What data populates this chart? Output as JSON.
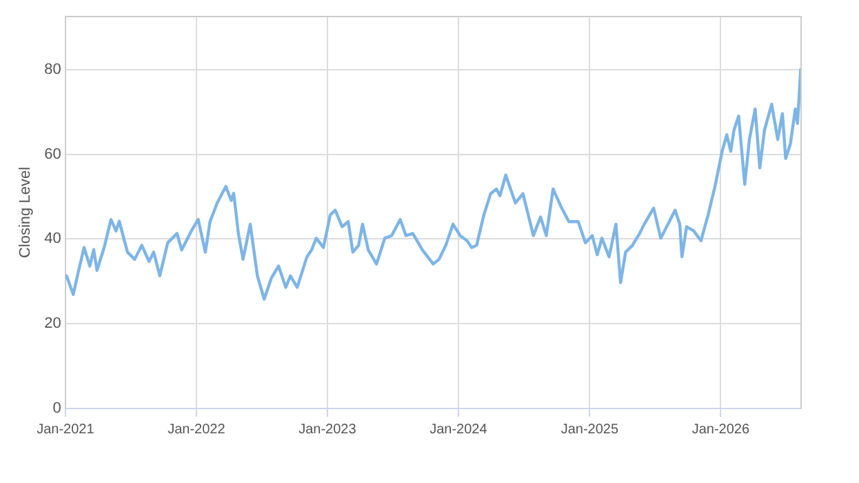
{
  "chart_data": {
    "type": "line",
    "ylabel": "Closing Level",
    "grid": true,
    "legend": false,
    "marker": "none",
    "line_style": "solid",
    "xlim": [
      "2021-01-01",
      "2026-08-13"
    ],
    "ylim": [
      0,
      92.5
    ],
    "yticks": [
      0,
      20,
      40,
      60,
      80
    ],
    "xticks": [
      {
        "value": "2021-01-01",
        "label": "Jan-2021"
      },
      {
        "value": "2022-01-01",
        "label": "Jan-2022"
      },
      {
        "value": "2023-01-01",
        "label": "Jan-2023"
      },
      {
        "value": "2024-01-01",
        "label": "Jan-2024"
      },
      {
        "value": "2025-01-01",
        "label": "Jan-2025"
      },
      {
        "value": "2026-01-01",
        "label": "Jan-2026"
      }
    ],
    "x": [
      "2021-01-04",
      "2021-01-23",
      "2021-02-05",
      "2021-02-22",
      "2021-03-10",
      "2021-03-21",
      "2021-03-30",
      "2021-04-19",
      "2021-05-08",
      "2021-05-22",
      "2021-05-31",
      "2021-06-23",
      "2021-07-13",
      "2021-08-02",
      "2021-08-22",
      "2021-09-04",
      "2021-09-21",
      "2021-10-13",
      "2021-11-08",
      "2021-11-21",
      "2021-12-18",
      "2022-01-06",
      "2022-01-26",
      "2022-02-08",
      "2022-02-28",
      "2022-03-24",
      "2022-04-08",
      "2022-04-15",
      "2022-04-28",
      "2022-05-11",
      "2022-05-31",
      "2022-06-20",
      "2022-07-09",
      "2022-07-29",
      "2022-08-18",
      "2022-09-07",
      "2022-09-20",
      "2022-10-09",
      "2022-11-05",
      "2022-11-18",
      "2022-12-01",
      "2022-12-21",
      "2023-01-09",
      "2023-01-23",
      "2023-02-11",
      "2023-02-28",
      "2023-03-13",
      "2023-03-29",
      "2023-04-09",
      "2023-04-25",
      "2023-05-18",
      "2023-06-10",
      "2023-06-29",
      "2023-07-23",
      "2023-08-08",
      "2023-08-27",
      "2023-09-23",
      "2023-10-23",
      "2023-11-08",
      "2023-11-27",
      "2023-12-17",
      "2024-01-06",
      "2024-01-25",
      "2024-02-07",
      "2024-02-21",
      "2024-03-12",
      "2024-03-31",
      "2024-04-16",
      "2024-04-26",
      "2024-05-12",
      "2024-06-08",
      "2024-06-29",
      "2024-07-28",
      "2024-08-17",
      "2024-09-02",
      "2024-09-21",
      "2024-10-15",
      "2024-11-04",
      "2024-11-30",
      "2024-12-20",
      "2025-01-08",
      "2025-01-22",
      "2025-02-04",
      "2025-02-24",
      "2025-03-15",
      "2025-03-28",
      "2025-04-11",
      "2025-04-30",
      "2025-05-20",
      "2025-06-02",
      "2025-06-28",
      "2025-07-18",
      "2025-08-07",
      "2025-08-27",
      "2025-09-09",
      "2025-09-15",
      "2025-09-28",
      "2025-10-18",
      "2025-11-07",
      "2025-11-27",
      "2025-12-16",
      "2026-01-05",
      "2026-01-18",
      "2026-01-29",
      "2026-02-07",
      "2026-02-20",
      "2026-03-09",
      "2026-03-22",
      "2026-04-07",
      "2026-04-20",
      "2026-05-03",
      "2026-05-23",
      "2026-06-09",
      "2026-06-22",
      "2026-07-01",
      "2026-07-14",
      "2026-07-28",
      "2026-08-03",
      "2026-08-12"
    ],
    "series": [
      {
        "color": "#7eb5e6",
        "values": [
          31.3,
          26.9,
          31.9,
          38,
          33.6,
          37.5,
          32.6,
          38,
          44.6,
          41.9,
          44.2,
          36.9,
          35.2,
          38.5,
          34.7,
          36.9,
          31.3,
          39.1,
          41.3,
          37.4,
          41.9,
          44.6,
          36.9,
          44.1,
          48.5,
          52.4,
          49.1,
          50.8,
          41.3,
          35.2,
          43.5,
          31.3,
          25.8,
          30.8,
          33.6,
          28.6,
          31.3,
          28.6,
          35.8,
          37.4,
          40.2,
          38,
          45.7,
          46.8,
          42.9,
          44.1,
          36.9,
          38.5,
          43.5,
          37.4,
          34.1,
          40.2,
          40.8,
          44.6,
          40.8,
          41.3,
          37.4,
          34.1,
          35.2,
          38.5,
          43.5,
          40.8,
          39.6,
          38,
          38.5,
          45.7,
          50.7,
          51.8,
          50.2,
          55.1,
          48.5,
          50.7,
          40.8,
          45.2,
          40.8,
          51.8,
          47.3,
          44.1,
          44.1,
          39.1,
          40.8,
          36.3,
          40.2,
          35.8,
          43.5,
          29.7,
          36.9,
          38.5,
          41.3,
          43.5,
          47.3,
          40.2,
          43.5,
          46.8,
          43.5,
          35.8,
          42.9,
          41.9,
          39.6,
          45.7,
          52.4,
          60.7,
          64.6,
          60.7,
          65.7,
          69,
          52.9,
          63.5,
          70.7,
          56.8,
          65.7,
          71.8,
          63.5,
          69.6,
          59,
          62.4,
          70.7,
          67.3,
          80
        ]
      }
    ]
  }
}
